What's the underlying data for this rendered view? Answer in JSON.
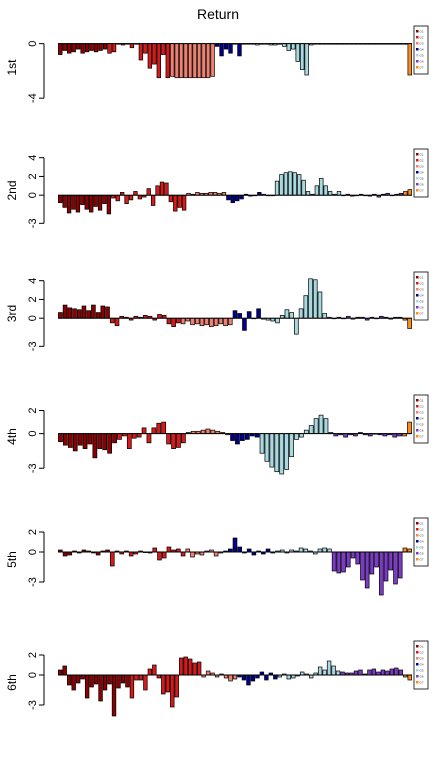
{
  "chart_data": {
    "type": "bar",
    "title": "Return",
    "group_colors": [
      "#8b0000",
      "#d61a1a",
      "#f08070",
      "#00008b",
      "#a8d8e0",
      "#7c3ac8",
      "#ff8c1a"
    ],
    "legend_entries": [
      "G1",
      "G2",
      "G3",
      "G4",
      "G5",
      "G6",
      "G7"
    ],
    "legend_placement": "right",
    "grid": false,
    "panels": [
      {
        "label": "1st",
        "ylim": [
          -4.5,
          1
        ],
        "ticks": [
          {
            "v": 0,
            "t": "0"
          },
          {
            "v": -4,
            "t": "-4"
          }
        ],
        "groups": [
          [
            -0.8,
            -0.5,
            -0.7,
            -0.6,
            -0.4,
            -0.7,
            -0.6,
            -0.5,
            -0.6,
            -0.5,
            -0.4
          ],
          [
            -0.7,
            -0.6,
            0.0,
            -0.1,
            0.0,
            -0.3,
            0.0,
            -1.2,
            -0.7,
            -1.8,
            -1.5,
            -2.5,
            -0.8,
            -2.5
          ],
          [
            -2.4,
            -2.5,
            -2.5,
            -2.5,
            -2.5,
            -2.5,
            -2.5,
            -2.5,
            -2.5,
            -2.4
          ],
          [
            -0.2,
            -0.9,
            -0.4,
            -0.7,
            0.0,
            -0.9,
            0.0,
            0.0
          ],
          [
            0.0,
            -0.1,
            0.0,
            0.0,
            -0.1,
            -0.1,
            0.0,
            -0.2,
            -0.5,
            -0.4,
            -1.3,
            -1.9,
            -2.3,
            -0.1,
            0.0,
            0.0,
            0.0,
            0.0,
            0.0,
            0.0
          ],
          [
            0.0,
            0.0,
            0.0,
            0.0,
            0.0,
            0.0,
            0.0,
            0.0,
            0.0,
            0.0,
            0.0,
            0.0,
            0.0,
            0.0
          ],
          [
            0.0,
            -2.3
          ]
        ]
      },
      {
        "label": "2nd",
        "ylim": [
          -3.5,
          4.5
        ],
        "ticks": [
          {
            "v": 4,
            "t": "4"
          },
          {
            "v": 2,
            "t": "2"
          },
          {
            "v": 0,
            "t": "0"
          },
          {
            "v": -3,
            "t": "-3"
          }
        ],
        "groups": [
          [
            -0.8,
            -1.3,
            -1.9,
            -1.5,
            -1.8,
            -1.0,
            -1.5,
            -1.8,
            -1.2,
            -1.6,
            -0.9,
            -2.0
          ],
          [
            -0.3,
            -0.6,
            0.3,
            -0.9,
            -0.5,
            0.4,
            -0.4,
            -0.2,
            0.7,
            -1.1,
            1.0,
            1.4,
            1.3,
            -0.7,
            -1.7,
            -1.3,
            -1.6
          ],
          [
            0.2,
            0.1,
            0.3,
            0.2,
            0.2,
            0.3,
            0.3,
            0.2,
            0.3
          ],
          [
            -0.5,
            -0.8,
            -0.6,
            -0.4,
            0.1,
            -0.1,
            0.0,
            0.3
          ],
          [
            0.1,
            0.0,
            0.0,
            1.5,
            2.2,
            2.4,
            2.5,
            2.4,
            2.2,
            1.6,
            0.4,
            0.1,
            1.0,
            1.8,
            1.0,
            0.4,
            0.1,
            0.4
          ],
          [
            0.0,
            0.1,
            -0.1,
            0.0,
            0.1,
            0.0,
            -0.1,
            0.1,
            -0.2,
            0.1,
            0.2,
            0.0,
            0.1,
            0.2
          ],
          [
            0.4,
            0.6
          ]
        ]
      },
      {
        "label": "3rd",
        "ylim": [
          -3.5,
          4.5
        ],
        "ticks": [
          {
            "v": 4,
            "t": "4"
          },
          {
            "v": 2,
            "t": "2"
          },
          {
            "v": 0,
            "t": "0"
          },
          {
            "v": -3,
            "t": "-3"
          }
        ],
        "groups": [
          [
            0.6,
            1.4,
            1.1,
            1.0,
            0.9,
            1.3,
            0.8,
            1.4,
            0.6,
            1.3,
            1.2
          ],
          [
            -0.5,
            -0.8,
            0.2,
            0.1,
            -0.2,
            0.2,
            0.1,
            0.3,
            0.2,
            -0.2,
            0.4,
            0.3,
            -0.6,
            -0.9,
            -0.5
          ],
          [
            -0.6,
            -0.3,
            -0.7,
            -0.6,
            -0.8,
            -0.7,
            -0.9,
            -0.8,
            -0.6,
            -0.8,
            -0.7
          ],
          [
            0.8,
            0.5,
            -1.3,
            0.7,
            0.0,
            1.0
          ],
          [
            -0.1,
            -0.2,
            -0.3,
            -0.5,
            0.3,
            0.9,
            0.6,
            -1.7,
            1.0,
            2.4,
            4.2,
            4.1,
            2.8,
            0.5,
            0.1,
            0.0
          ],
          [
            0.1,
            0.0,
            0.2,
            -0.1,
            0.1,
            0.1,
            -0.2,
            0.1,
            0.0,
            0.2,
            0.1,
            -0.1,
            0.1,
            0.1
          ],
          [
            -0.2,
            -1.1
          ]
        ]
      },
      {
        "label": "4th",
        "ylim": [
          -3.5,
          3
        ],
        "ticks": [
          {
            "v": 2,
            "t": "2"
          },
          {
            "v": 0,
            "t": "0"
          },
          {
            "v": -3,
            "t": "-3"
          }
        ],
        "groups": [
          [
            -0.7,
            -1.0,
            -1.2,
            -1.5,
            -1.0,
            -1.3,
            -0.9,
            -2.1,
            -1.3,
            -1.4,
            -1.7,
            -0.8
          ],
          [
            -0.5,
            -0.2,
            -1.3,
            -0.4,
            -0.3,
            0.5,
            -0.8,
            0.5,
            0.9,
            1.0,
            -0.9,
            -1.3,
            -1.2,
            -0.8
          ],
          [
            0.1,
            0.2,
            0.2,
            0.3,
            0.4,
            0.3,
            0.2,
            0.1,
            -0.1
          ],
          [
            -0.6,
            -0.9,
            -0.6,
            -0.5,
            -0.2,
            -0.3
          ],
          [
            -1.7,
            -2.4,
            -2.9,
            -3.3,
            -3.5,
            -3.1,
            -2.0,
            -0.5,
            -0.3,
            0.3,
            0.7,
            1.3,
            1.6,
            1.3,
            0.1
          ],
          [
            -0.2,
            -0.1,
            -0.3,
            -0.1,
            -0.2,
            0.1,
            -0.1,
            -0.2,
            0.0,
            -0.1,
            -0.2,
            -0.1,
            -0.3,
            -0.2
          ],
          [
            -0.2,
            1.0
          ]
        ]
      },
      {
        "label": "5th",
        "ylim": [
          -4.5,
          3
        ],
        "ticks": [
          {
            "v": 2,
            "t": "2"
          },
          {
            "v": 0,
            "t": "0"
          },
          {
            "v": -3,
            "t": "-3"
          }
        ],
        "groups": [
          [
            0.2,
            -0.4,
            -0.3,
            0.1,
            -0.1,
            0.2,
            0.1,
            -0.1,
            -0.3,
            0.1,
            0.2
          ],
          [
            -1.4,
            0.1,
            -0.2,
            0.1,
            -0.4,
            -0.2,
            0.1,
            0.0,
            -0.1,
            0.4,
            -0.8,
            -0.6,
            0.5,
            0.2,
            0.3,
            -0.4
          ],
          [
            0.3,
            -0.5,
            -0.2,
            -0.3,
            0.1,
            0.2,
            -0.4,
            -0.1
          ],
          [
            0.1,
            0.3,
            1.4,
            0.5,
            -0.1,
            0.3,
            -0.3,
            0.1,
            -0.2,
            0.3,
            -0.1
          ],
          [
            0.1,
            0.2,
            -0.1,
            0.2,
            0.1,
            0.4,
            0.3,
            0.1,
            -0.2,
            0.3,
            0.4,
            0.3
          ],
          [
            -1.9,
            -2.1,
            -2.0,
            -1.5,
            -0.6,
            -1.2,
            -2.8,
            -3.6,
            -2.2,
            -1.5,
            -4.3,
            -2.9,
            -1.8,
            -3.2,
            -2.6
          ],
          [
            0.4,
            0.3
          ]
        ]
      },
      {
        "label": "6th",
        "ylim": [
          -4.5,
          3
        ],
        "ticks": [
          {
            "v": 2,
            "t": "2"
          },
          {
            "v": 0,
            "t": "0"
          },
          {
            "v": -3,
            "t": "-3"
          }
        ],
        "groups": [
          [
            0.5,
            0.9,
            -1.0,
            -1.5,
            -0.8,
            -0.4,
            -2.3,
            -1.2,
            -0.9,
            -2.6,
            -1.5,
            -0.9,
            -4.1,
            -1.3,
            -0.8,
            -1.2
          ],
          [
            -2.3,
            -0.5,
            -0.5,
            -1.5,
            0.6,
            1.0,
            -0.3,
            -1.9,
            -1.7,
            -3.2,
            -2.2,
            1.7,
            1.8,
            1.6,
            1.2,
            1.3
          ],
          [
            -0.2,
            0.4,
            0.2,
            -0.2,
            0.1,
            -0.3,
            -0.6,
            -0.4
          ],
          [
            -0.2,
            -0.5,
            -1.0,
            -0.6,
            -0.3,
            0.3,
            -0.5,
            0.2,
            -0.4
          ],
          [
            -0.2,
            0.1,
            -0.4,
            -0.3,
            -0.1,
            0.3,
            0.1,
            -0.3,
            0.2,
            0.8,
            0.5,
            1.4,
            0.9,
            0.4
          ],
          [
            0.3,
            0.2,
            0.2,
            0.4,
            0.5,
            0.1,
            0.5,
            0.6,
            0.3,
            0.5,
            0.4,
            0.6,
            0.7,
            0.5
          ],
          [
            -0.2,
            -0.5
          ]
        ]
      }
    ]
  }
}
